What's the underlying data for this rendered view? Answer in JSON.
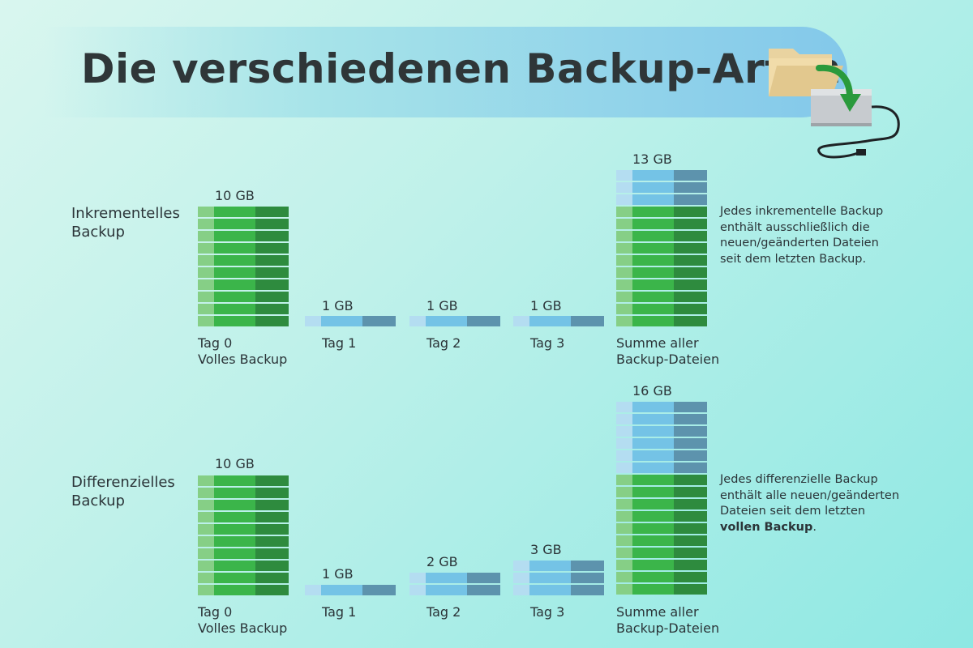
{
  "title": "Die verschiedenen Backup-Arten",
  "icons": {
    "illustration": "folder-to-drive-backup-icon"
  },
  "colors": {
    "full_backup": [
      "#86cf86",
      "#3bb54a",
      "#2e8b3e"
    ],
    "incremental_data": [
      "#b4ddf1",
      "#74c3e6",
      "#5d93ad"
    ]
  },
  "sections": [
    {
      "label_line1": "Inkrementelles",
      "label_line2": "Backup",
      "description": [
        "Jedes inkrementelle Backup",
        "enthält ausschließlich die",
        "neuen/geänderten Dateien",
        "seit dem letzten Backup."
      ],
      "columns": [
        {
          "value": "10 GB",
          "label1": "Tag 0",
          "label2": "Volles Backup",
          "full_blocks": 10,
          "incr_blocks": 0
        },
        {
          "value": "1 GB",
          "label1": "Tag 1",
          "label2": "",
          "full_blocks": 0,
          "incr_blocks": 1
        },
        {
          "value": "1 GB",
          "label1": "Tag 2",
          "label2": "",
          "full_blocks": 0,
          "incr_blocks": 1
        },
        {
          "value": "1 GB",
          "label1": "Tag 3",
          "label2": "",
          "full_blocks": 0,
          "incr_blocks": 1
        },
        {
          "value": "13 GB",
          "label1": "Summe aller",
          "label2": "Backup-Dateien",
          "full_blocks": 10,
          "incr_blocks": 3
        }
      ]
    },
    {
      "label_line1": "Differenzielles",
      "label_line2": "Backup",
      "description": [
        "Jedes differenzielle Backup",
        "enthält alle neuen/geänderten",
        "Dateien seit dem letzten"
      ],
      "description_bold": "vollen Backup",
      "description_tail": ".",
      "columns": [
        {
          "value": "10 GB",
          "label1": "Tag 0",
          "label2": "Volles Backup",
          "full_blocks": 10,
          "incr_blocks": 0
        },
        {
          "value": "1 GB",
          "label1": "Tag 1",
          "label2": "",
          "full_blocks": 0,
          "incr_blocks": 1
        },
        {
          "value": "2 GB",
          "label1": "Tag 2",
          "label2": "",
          "full_blocks": 0,
          "incr_blocks": 2
        },
        {
          "value": "3 GB",
          "label1": "Tag 3",
          "label2": "",
          "full_blocks": 0,
          "incr_blocks": 3
        },
        {
          "value": "16 GB",
          "label1": "Summe aller",
          "label2": "Backup-Dateien",
          "full_blocks": 10,
          "incr_blocks": 6
        }
      ]
    }
  ]
}
